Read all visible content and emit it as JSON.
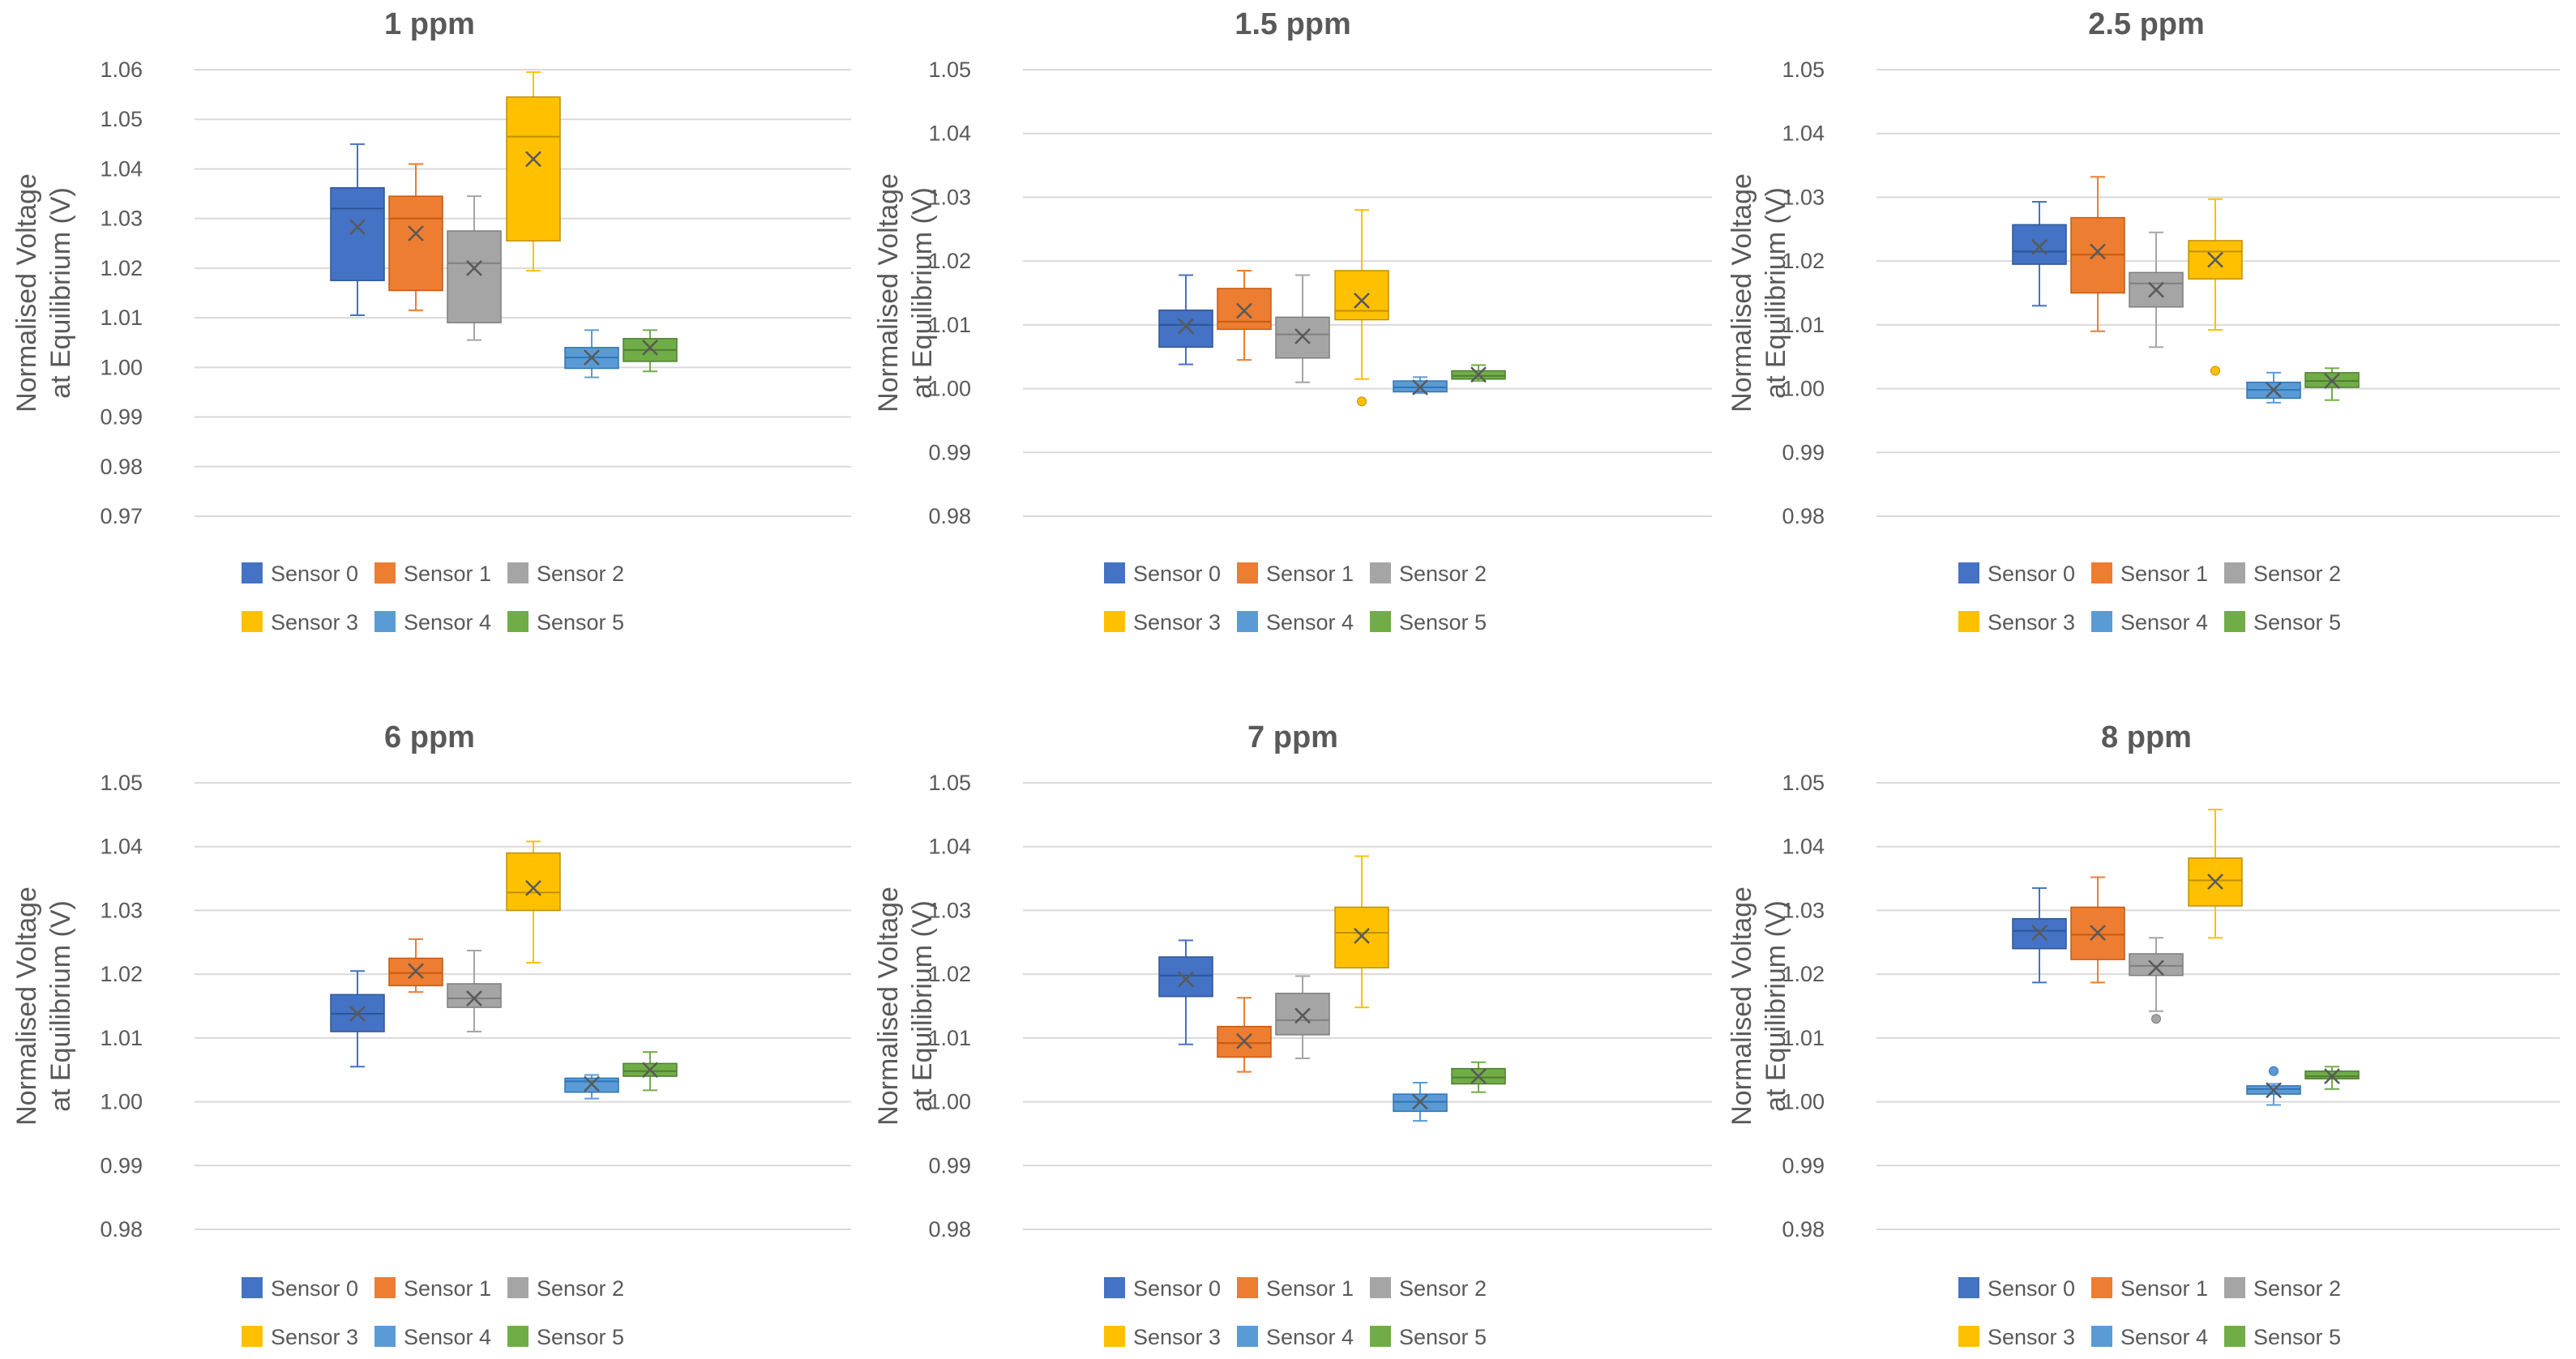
{
  "chart_data": [
    {
      "type": "box",
      "title": "1 ppm",
      "ylabel": [
        "Normalised Voltage",
        "at Equilibrium (V)"
      ],
      "ylim": [
        0.97,
        1.06
      ],
      "yticks": [
        "0.97",
        "0.98",
        "0.99",
        "1.00",
        "1.01",
        "1.02",
        "1.03",
        "1.04",
        "1.05",
        "1.06"
      ],
      "series": [
        {
          "name": "Sensor 0",
          "min": 1.0105,
          "q1": 1.0175,
          "median": 1.032,
          "q3": 1.0362,
          "max": 1.045,
          "mean": 1.0283,
          "outliers": []
        },
        {
          "name": "Sensor 1",
          "min": 1.0115,
          "q1": 1.0155,
          "median": 1.03,
          "q3": 1.0345,
          "max": 1.041,
          "mean": 1.027,
          "outliers": []
        },
        {
          "name": "Sensor 2",
          "min": 1.0055,
          "q1": 1.009,
          "median": 1.021,
          "q3": 1.0275,
          "max": 1.0345,
          "mean": 1.02,
          "outliers": []
        },
        {
          "name": "Sensor 3",
          "min": 1.0195,
          "q1": 1.0255,
          "median": 1.0465,
          "q3": 1.0545,
          "max": 1.0595,
          "mean": 1.042,
          "outliers": []
        },
        {
          "name": "Sensor 4",
          "min": 0.998,
          "q1": 0.9998,
          "median": 1.002,
          "q3": 1.004,
          "max": 1.0075,
          "mean": 1.002,
          "outliers": []
        },
        {
          "name": "Sensor 5",
          "min": 0.9992,
          "q1": 1.0012,
          "median": 1.0035,
          "q3": 1.0058,
          "max": 1.0075,
          "mean": 1.004,
          "outliers": []
        }
      ]
    },
    {
      "type": "box",
      "title": "1.5 ppm",
      "ylabel": [
        "Normalised Voltage",
        "at Equilibrium (V)"
      ],
      "ylim": [
        0.98,
        1.05
      ],
      "yticks": [
        "0.98",
        "0.99",
        "1.00",
        "1.01",
        "1.02",
        "1.03",
        "1.04",
        "1.05"
      ],
      "series": [
        {
          "name": "Sensor 0",
          "min": 1.0038,
          "q1": 1.0065,
          "median": 1.01,
          "q3": 1.0123,
          "max": 1.0178,
          "mean": 1.0098,
          "outliers": []
        },
        {
          "name": "Sensor 1",
          "min": 1.0045,
          "q1": 1.0093,
          "median": 1.0105,
          "q3": 1.0157,
          "max": 1.0185,
          "mean": 1.0122,
          "outliers": []
        },
        {
          "name": "Sensor 2",
          "min": 1.001,
          "q1": 1.0048,
          "median": 1.0085,
          "q3": 1.0112,
          "max": 1.0178,
          "mean": 1.0082,
          "outliers": []
        },
        {
          "name": "Sensor 3",
          "min": 1.0015,
          "q1": 1.0108,
          "median": 1.0122,
          "q3": 1.0185,
          "max": 1.028,
          "mean": 1.0138,
          "outliers": [
            0.998
          ]
        },
        {
          "name": "Sensor 4",
          "min": 0.9993,
          "q1": 0.9995,
          "median": 1.0002,
          "q3": 1.0012,
          "max": 1.0018,
          "mean": 1.0002,
          "outliers": []
        },
        {
          "name": "Sensor 5",
          "min": 1.0012,
          "q1": 1.0015,
          "median": 1.002,
          "q3": 1.0028,
          "max": 1.0037,
          "mean": 1.0022,
          "outliers": []
        }
      ]
    },
    {
      "type": "box",
      "title": "2.5 ppm",
      "ylabel": [
        "Normalised Voltage",
        "at Equilibrium (V)"
      ],
      "ylim": [
        0.98,
        1.05
      ],
      "yticks": [
        "0.98",
        "0.99",
        "1.00",
        "1.01",
        "1.02",
        "1.03",
        "1.04",
        "1.05"
      ],
      "series": [
        {
          "name": "Sensor 0",
          "min": 1.013,
          "q1": 1.0195,
          "median": 1.0215,
          "q3": 1.0257,
          "max": 1.0293,
          "mean": 1.0222,
          "outliers": []
        },
        {
          "name": "Sensor 1",
          "min": 1.009,
          "q1": 1.015,
          "median": 1.021,
          "q3": 1.0268,
          "max": 1.0332,
          "mean": 1.0215,
          "outliers": []
        },
        {
          "name": "Sensor 2",
          "min": 1.0065,
          "q1": 1.0128,
          "median": 1.0165,
          "q3": 1.0182,
          "max": 1.0245,
          "mean": 1.0155,
          "outliers": []
        },
        {
          "name": "Sensor 3",
          "min": 1.0092,
          "q1": 1.0172,
          "median": 1.0215,
          "q3": 1.0232,
          "max": 1.0297,
          "mean": 1.0202,
          "outliers": [
            1.0028
          ]
        },
        {
          "name": "Sensor 4",
          "min": 0.9978,
          "q1": 0.9985,
          "median": 0.9998,
          "q3": 1.001,
          "max": 1.0025,
          "mean": 0.9998,
          "outliers": []
        },
        {
          "name": "Sensor 5",
          "min": 0.9982,
          "q1": 1.0002,
          "median": 1.0012,
          "q3": 1.0025,
          "max": 1.0032,
          "mean": 1.0012,
          "outliers": []
        }
      ]
    },
    {
      "type": "box",
      "title": "6 ppm",
      "ylabel": [
        "Normalised Voltage",
        "at Equilibrium (V)"
      ],
      "ylim": [
        0.98,
        1.05
      ],
      "yticks": [
        "0.98",
        "0.99",
        "1.00",
        "1.01",
        "1.02",
        "1.03",
        "1.04",
        "1.05"
      ],
      "series": [
        {
          "name": "Sensor 0",
          "min": 1.0055,
          "q1": 1.011,
          "median": 1.0138,
          "q3": 1.0168,
          "max": 1.0205,
          "mean": 1.0138,
          "outliers": []
        },
        {
          "name": "Sensor 1",
          "min": 1.0172,
          "q1": 1.0182,
          "median": 1.0202,
          "q3": 1.0225,
          "max": 1.0255,
          "mean": 1.0205,
          "outliers": []
        },
        {
          "name": "Sensor 2",
          "min": 1.011,
          "q1": 1.0148,
          "median": 1.0162,
          "q3": 1.0185,
          "max": 1.0237,
          "mean": 1.0162,
          "outliers": []
        },
        {
          "name": "Sensor 3",
          "min": 1.0218,
          "q1": 1.03,
          "median": 1.0328,
          "q3": 1.039,
          "max": 1.0408,
          "mean": 1.0335,
          "outliers": []
        },
        {
          "name": "Sensor 4",
          "min": 1.0005,
          "q1": 1.0015,
          "median": 1.0032,
          "q3": 1.0037,
          "max": 1.0042,
          "mean": 1.0028,
          "outliers": []
        },
        {
          "name": "Sensor 5",
          "min": 1.0018,
          "q1": 1.004,
          "median": 1.0048,
          "q3": 1.006,
          "max": 1.0078,
          "mean": 1.005,
          "outliers": []
        }
      ]
    },
    {
      "type": "box",
      "title": "7 ppm",
      "ylabel": [
        "Normalised Voltage",
        "at Equilibrium (V)"
      ],
      "ylim": [
        0.98,
        1.05
      ],
      "yticks": [
        "0.98",
        "0.99",
        "1.00",
        "1.01",
        "1.02",
        "1.03",
        "1.04",
        "1.05"
      ],
      "series": [
        {
          "name": "Sensor 0",
          "min": 1.009,
          "q1": 1.0165,
          "median": 1.0198,
          "q3": 1.0227,
          "max": 1.0253,
          "mean": 1.0192,
          "outliers": []
        },
        {
          "name": "Sensor 1",
          "min": 1.0047,
          "q1": 1.007,
          "median": 1.0092,
          "q3": 1.0118,
          "max": 1.0163,
          "mean": 1.0095,
          "outliers": []
        },
        {
          "name": "Sensor 2",
          "min": 1.0068,
          "q1": 1.0105,
          "median": 1.0128,
          "q3": 1.017,
          "max": 1.0197,
          "mean": 1.0135,
          "outliers": []
        },
        {
          "name": "Sensor 3",
          "min": 1.0148,
          "q1": 1.021,
          "median": 1.0265,
          "q3": 1.0305,
          "max": 1.0385,
          "mean": 1.026,
          "outliers": []
        },
        {
          "name": "Sensor 4",
          "min": 0.997,
          "q1": 0.9985,
          "median": 1.0,
          "q3": 1.0012,
          "max": 1.003,
          "mean": 1.0,
          "outliers": []
        },
        {
          "name": "Sensor 5",
          "min": 1.0015,
          "q1": 1.0028,
          "median": 1.0038,
          "q3": 1.0052,
          "max": 1.0062,
          "mean": 1.004,
          "outliers": []
        }
      ]
    },
    {
      "type": "box",
      "title": "8 ppm",
      "ylabel": [
        "Normalised Voltage",
        "at Equilibrium (V)"
      ],
      "ylim": [
        0.98,
        1.05
      ],
      "yticks": [
        "0.98",
        "0.99",
        "1.00",
        "1.01",
        "1.02",
        "1.03",
        "1.04",
        "1.05"
      ],
      "series": [
        {
          "name": "Sensor 0",
          "min": 1.0187,
          "q1": 1.024,
          "median": 1.0268,
          "q3": 1.0287,
          "max": 1.0335,
          "mean": 1.0265,
          "outliers": []
        },
        {
          "name": "Sensor 1",
          "min": 1.0187,
          "q1": 1.0223,
          "median": 1.0262,
          "q3": 1.0305,
          "max": 1.0352,
          "mean": 1.0265,
          "outliers": []
        },
        {
          "name": "Sensor 2",
          "min": 1.0142,
          "q1": 1.0198,
          "median": 1.0213,
          "q3": 1.0232,
          "max": 1.0257,
          "mean": 1.021,
          "outliers": [
            1.013
          ]
        },
        {
          "name": "Sensor 3",
          "min": 1.0257,
          "q1": 1.0307,
          "median": 1.0347,
          "q3": 1.0382,
          "max": 1.0458,
          "mean": 1.0345,
          "outliers": []
        },
        {
          "name": "Sensor 4",
          "min": 0.9995,
          "q1": 1.0012,
          "median": 1.002,
          "q3": 1.0025,
          "max": 1.0028,
          "mean": 1.0018,
          "outliers": [
            1.0048
          ]
        },
        {
          "name": "Sensor 5",
          "min": 1.002,
          "q1": 1.0036,
          "median": 1.004,
          "q3": 1.0048,
          "max": 1.0055,
          "mean": 1.004,
          "outliers": []
        }
      ]
    }
  ],
  "sensor_colors": {
    "Sensor 0": "#4472C4",
    "Sensor 1": "#ED7D31",
    "Sensor 2": "#A5A5A5",
    "Sensor 3": "#FFC000",
    "Sensor 4": "#5B9BD5",
    "Sensor 5": "#70AD47"
  },
  "sensor_edge_colors": {
    "Sensor 0": "#2F5597",
    "Sensor 1": "#C55A11",
    "Sensor 2": "#7F7F7F",
    "Sensor 3": "#BF9000",
    "Sensor 4": "#2E75B6",
    "Sensor 5": "#507E32"
  },
  "text_color": "#595959",
  "grid_color": "#D9D9D9"
}
